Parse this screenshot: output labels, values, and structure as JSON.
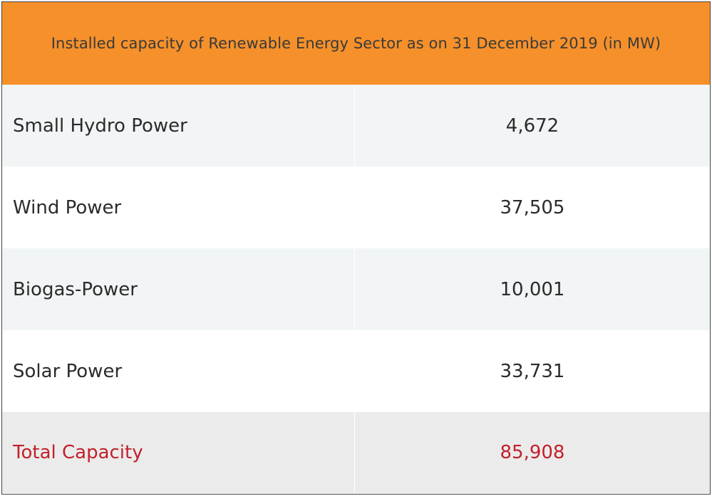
{
  "table": {
    "title": "Installed capacity of Renewable Energy Sector as on 31 December 2019 (in MW)",
    "rows": [
      {
        "label": "Small Hydro Power",
        "value": "4,672"
      },
      {
        "label": "Wind Power",
        "value": "37,505"
      },
      {
        "label": "Biogas-Power",
        "value": "10,001"
      },
      {
        "label": "Solar Power",
        "value": "33,731"
      }
    ],
    "total": {
      "label": "Total Capacity",
      "value": "85,908"
    }
  },
  "colors": {
    "header_bg": "#f6902a",
    "total_text": "#c3202a",
    "shaded_row": "#f1f5f5",
    "total_row": "#ebebeb"
  }
}
